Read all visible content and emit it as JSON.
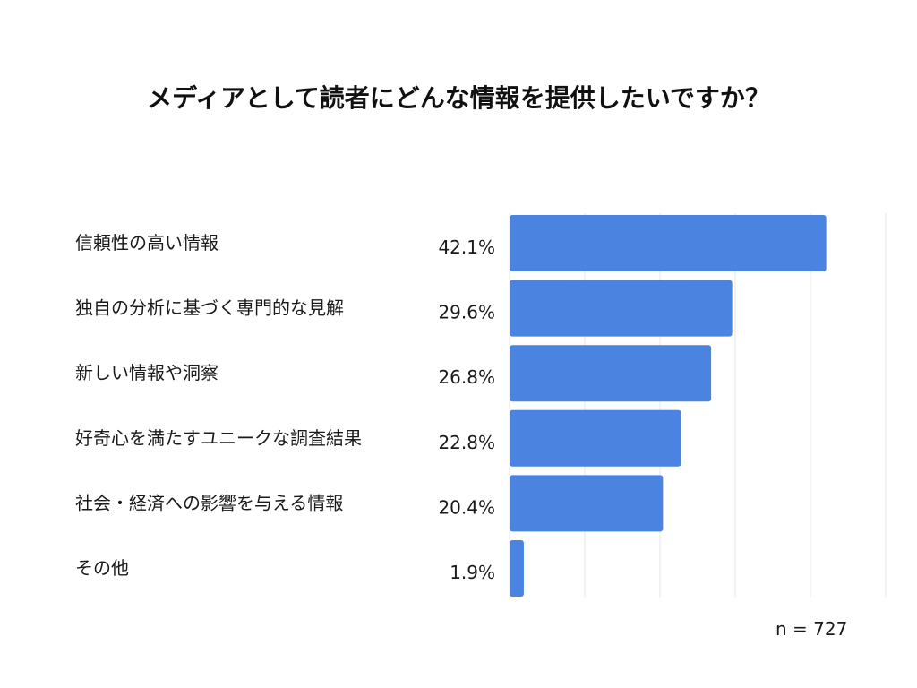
{
  "chart_data": {
    "type": "bar",
    "orientation": "horizontal",
    "title": "メディアとして読者にどんな情報を提供したいですか？",
    "categories": [
      "信頼性の高い情報",
      "独自の分析に基づく専門的な見解",
      "新しい情報や洞察",
      "好奇心を満たすユニークな調査結果",
      "社会・経済への影響を与える情報",
      "その他"
    ],
    "values": [
      42.1,
      29.6,
      26.8,
      22.8,
      20.4,
      1.9
    ],
    "value_labels": [
      "42.1%",
      "29.6%",
      "26.8%",
      "22.8%",
      "20.4%",
      "1.9%"
    ],
    "xlim": [
      0,
      50
    ],
    "grid": true,
    "bar_color": "#4a84e0",
    "grid_color": "#e6e6e6"
  },
  "footer": {
    "sample_size": "n = 727"
  }
}
